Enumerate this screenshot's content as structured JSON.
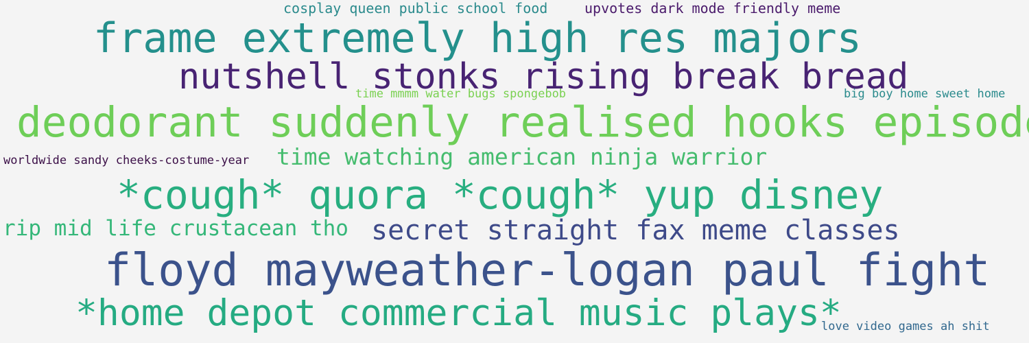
{
  "phrases": [
    {
      "text": "cosplay queen public school food",
      "color": "#2a8a8c"
    },
    {
      "text": "upvotes dark mode friendly meme",
      "color": "#4a1a6b"
    },
    {
      "text": "frame extremely high res majors",
      "color": "#24908c"
    },
    {
      "text": "nutshell stonks rising break bread",
      "color": "#482373"
    },
    {
      "text": "time mmmm water bugs spongebob",
      "color": "#7ad151"
    },
    {
      "text": "big boy home sweet home",
      "color": "#2a8a8c"
    },
    {
      "text": "deodorant suddenly realised hooks episode",
      "color": "#6ece58"
    },
    {
      "text": "worldwide sandy cheeks-costume-year",
      "color": "#3b0f47"
    },
    {
      "text": "time watching american ninja warrior",
      "color": "#45bc6e"
    },
    {
      "text": "*cough* quora *cough* yup disney",
      "color": "#28ae80"
    },
    {
      "text": "rip mid life crustacean tho",
      "color": "#35b779"
    },
    {
      "text": "secret straight fax meme classes",
      "color": "#3e4a89"
    },
    {
      "text": "floyd mayweather-logan paul fight",
      "color": "#3b528b"
    },
    {
      "text": "*home depot commercial music plays*",
      "color": "#25ab82"
    },
    {
      "text": "love video games ah shit",
      "color": "#31688e"
    }
  ]
}
